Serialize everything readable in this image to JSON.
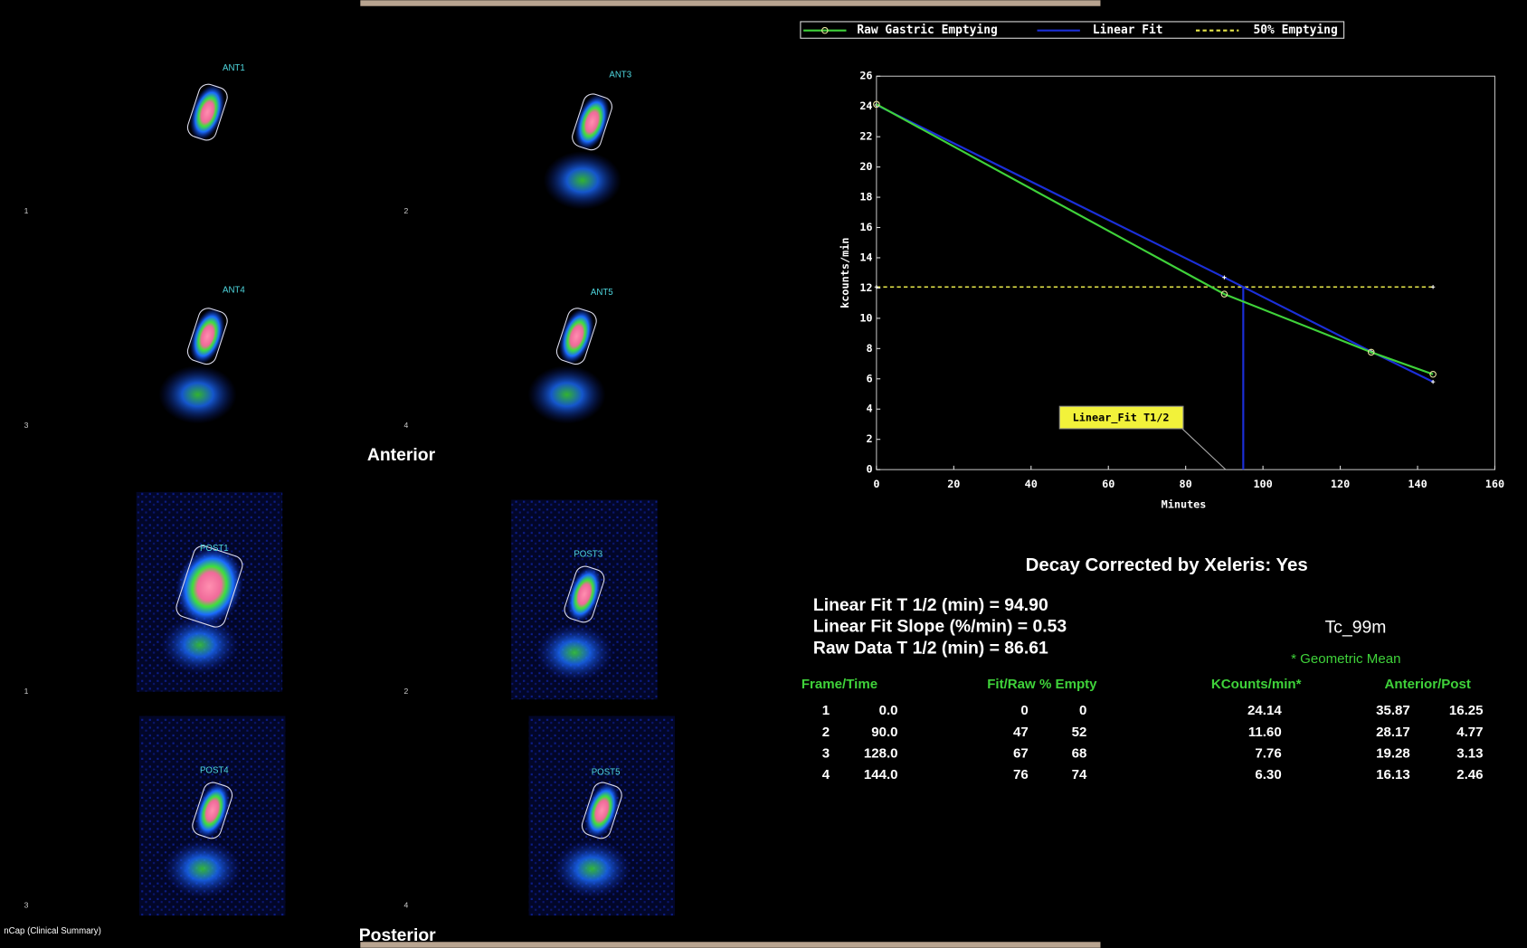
{
  "images": {
    "anterior": {
      "title": "Anterior",
      "frames": [
        {
          "label": "ANT1",
          "number": "1"
        },
        {
          "label": "ANT3",
          "number": "2"
        },
        {
          "label": "ANT4",
          "number": "3"
        },
        {
          "label": "ANT5",
          "number": "4"
        }
      ]
    },
    "posterior": {
      "title": "Posterior",
      "frames": [
        {
          "label": "POST1",
          "number": "1"
        },
        {
          "label": "POST3",
          "number": "2"
        },
        {
          "label": "POST4",
          "number": "3"
        },
        {
          "label": "POST5",
          "number": "4"
        }
      ]
    }
  },
  "chart_data": {
    "type": "line",
    "x_label": "Minutes",
    "y_label": "kcounts/min",
    "xlim": [
      0,
      160
    ],
    "xticks": [
      0,
      20,
      40,
      60,
      80,
      100,
      120,
      140,
      160
    ],
    "ylim": [
      0,
      26
    ],
    "yticks": [
      0,
      2,
      4,
      6,
      8,
      10,
      12,
      14,
      16,
      18,
      20,
      22,
      24,
      26
    ],
    "grid": false,
    "legend": "top",
    "series": [
      {
        "name": "Raw Gastric Emptying",
        "color": "#3fd23a",
        "style": "solid",
        "marker": "circle",
        "x": [
          0,
          90,
          128,
          144
        ],
        "values": [
          24.14,
          11.6,
          7.76,
          6.3
        ]
      },
      {
        "name": "Linear Fit",
        "color": "#1b2fd8",
        "style": "solid",
        "marker": "plus",
        "x": [
          0,
          90,
          128,
          144
        ],
        "values": [
          24.1,
          12.7,
          7.8,
          5.8
        ]
      },
      {
        "name": "50% Emptying",
        "color": "#e8e84a",
        "style": "dashed",
        "marker": "plus",
        "x": [
          0,
          144
        ],
        "values": [
          12.07,
          12.07
        ]
      }
    ],
    "annotations": [
      {
        "text": "Linear_Fit T1/2",
        "x": 94.9,
        "y": 0
      }
    ]
  },
  "summary": {
    "decay": "Decay Corrected by Xeleris: Yes",
    "lines": [
      "Linear Fit T 1/2 (min) = 94.90",
      "Linear Fit Slope (%/min) = 0.53",
      "Raw Data T 1/2 (min) = 86.61"
    ],
    "isotope": "Tc_99m",
    "note": "* Geometric Mean"
  },
  "table": {
    "headers": [
      "Frame/Time",
      "Fit/Raw % Empty",
      "KCounts/min*",
      "Anterior/Post"
    ],
    "rows": [
      [
        "1",
        "0.0",
        "0",
        "0",
        "24.14",
        "35.87",
        "16.25"
      ],
      [
        "2",
        "90.0",
        "47",
        "52",
        "11.60",
        "28.17",
        "4.77"
      ],
      [
        "3",
        "128.0",
        "67",
        "68",
        "7.76",
        "19.28",
        "3.13"
      ],
      [
        "4",
        "144.0",
        "76",
        "74",
        "6.30",
        "16.13",
        "2.46"
      ]
    ]
  },
  "footer": "nCap (Clinical Summary)"
}
